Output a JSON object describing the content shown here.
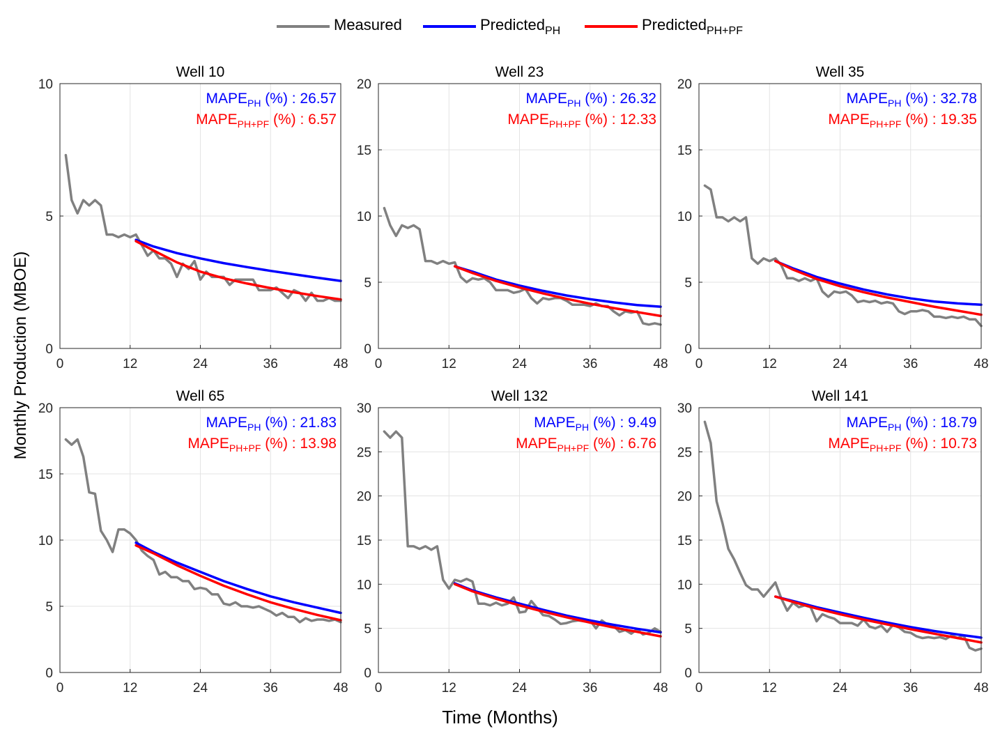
{
  "legend": {
    "measured": "Measured",
    "predicted_ph": "Predicted",
    "predicted_ph_sub": "PH",
    "predicted_phpf": "Predicted",
    "predicted_phpf_sub": "PH+PF"
  },
  "colors": {
    "measured": "#808080",
    "predicted_ph": "#0000ff",
    "predicted_phpf": "#ff0000",
    "grid": "#e3e3e3"
  },
  "ylabel": "Monthly Production (MBOE)",
  "xlabel": "Time (Months)",
  "mape_label": "MAPE",
  "mape_ph_sub": "PH",
  "mape_phpf_sub": "PH+PF",
  "mape_unit": "(%) :",
  "chart_data": [
    {
      "type": "line",
      "title": "Well 10",
      "xlim": [
        0,
        48
      ],
      "ylim": [
        0,
        10
      ],
      "xticks": [
        0,
        12,
        24,
        36,
        48
      ],
      "yticks": [
        0,
        5,
        10
      ],
      "grid": true,
      "mape_ph": "26.57",
      "mape_phpf": "6.57",
      "series": [
        {
          "name": "Measured",
          "x": [
            1,
            2,
            3,
            4,
            5,
            6,
            7,
            8,
            9,
            10,
            11,
            12,
            13,
            14,
            15,
            16,
            17,
            18,
            19,
            20,
            21,
            22,
            23,
            24,
            25,
            26,
            27,
            28,
            29,
            30,
            31,
            32,
            33,
            34,
            35,
            36,
            37,
            38,
            39,
            40,
            41,
            42,
            43,
            44,
            45,
            46,
            47,
            48
          ],
          "values": [
            7.3,
            5.6,
            5.1,
            5.6,
            5.4,
            5.6,
            5.4,
            4.3,
            4.3,
            4.2,
            4.3,
            4.2,
            4.3,
            3.9,
            3.5,
            3.7,
            3.4,
            3.4,
            3.2,
            2.7,
            3.2,
            3.0,
            3.3,
            2.6,
            2.9,
            2.7,
            2.7,
            2.7,
            2.4,
            2.6,
            2.6,
            2.6,
            2.6,
            2.2,
            2.2,
            2.2,
            2.3,
            2.1,
            1.9,
            2.2,
            2.1,
            1.8,
            2.1,
            1.8,
            1.8,
            1.9,
            1.8,
            1.8
          ]
        },
        {
          "name": "Predicted",
          "x": [
            13,
            16,
            20,
            24,
            28,
            32,
            36,
            40,
            44,
            48
          ],
          "values": [
            4.1,
            3.85,
            3.6,
            3.4,
            3.22,
            3.07,
            2.93,
            2.8,
            2.67,
            2.55
          ]
        },
        {
          "name": "Predicted",
          "x": [
            13,
            16,
            20,
            24,
            28,
            32,
            36,
            40,
            44,
            48
          ],
          "values": [
            4.05,
            3.7,
            3.25,
            2.9,
            2.65,
            2.45,
            2.28,
            2.12,
            1.98,
            1.85
          ]
        }
      ]
    },
    {
      "type": "line",
      "title": "Well 23",
      "xlim": [
        0,
        48
      ],
      "ylim": [
        0,
        20
      ],
      "xticks": [
        0,
        12,
        24,
        36,
        48
      ],
      "yticks": [
        0,
        5,
        10,
        15,
        20
      ],
      "grid": true,
      "mape_ph": "26.32",
      "mape_phpf": "12.33",
      "series": [
        {
          "name": "Measured",
          "x": [
            1,
            2,
            3,
            4,
            5,
            6,
            7,
            8,
            9,
            10,
            11,
            12,
            13,
            14,
            15,
            16,
            17,
            18,
            19,
            20,
            21,
            22,
            23,
            24,
            25,
            26,
            27,
            28,
            29,
            30,
            31,
            32,
            33,
            34,
            35,
            36,
            37,
            38,
            39,
            40,
            41,
            42,
            43,
            44,
            45,
            46,
            47,
            48
          ],
          "values": [
            10.6,
            9.3,
            8.5,
            9.3,
            9.1,
            9.3,
            9.0,
            6.6,
            6.6,
            6.4,
            6.6,
            6.4,
            6.5,
            5.4,
            5.0,
            5.3,
            5.2,
            5.3,
            5.0,
            4.4,
            4.4,
            4.4,
            4.2,
            4.3,
            4.5,
            3.8,
            3.4,
            3.8,
            3.7,
            3.8,
            3.8,
            3.6,
            3.3,
            3.3,
            3.3,
            3.2,
            3.4,
            3.2,
            3.2,
            2.8,
            2.5,
            2.8,
            2.7,
            2.8,
            1.9,
            1.8,
            1.9,
            1.8
          ]
        },
        {
          "name": "Predicted",
          "x": [
            13,
            16,
            20,
            24,
            28,
            32,
            36,
            40,
            44,
            48
          ],
          "values": [
            6.2,
            5.8,
            5.2,
            4.75,
            4.35,
            4.0,
            3.72,
            3.48,
            3.28,
            3.15
          ]
        },
        {
          "name": "Predicted",
          "x": [
            13,
            16,
            20,
            24,
            28,
            32,
            36,
            40,
            44,
            48
          ],
          "values": [
            6.2,
            5.7,
            5.1,
            4.6,
            4.15,
            3.75,
            3.38,
            3.05,
            2.75,
            2.45
          ]
        }
      ]
    },
    {
      "type": "line",
      "title": "Well 35",
      "xlim": [
        0,
        48
      ],
      "ylim": [
        0,
        20
      ],
      "xticks": [
        0,
        12,
        24,
        36,
        48
      ],
      "yticks": [
        0,
        5,
        10,
        15,
        20
      ],
      "grid": true,
      "mape_ph": "32.78",
      "mape_phpf": "19.35",
      "series": [
        {
          "name": "Measured",
          "x": [
            1,
            2,
            3,
            4,
            5,
            6,
            7,
            8,
            9,
            10,
            11,
            12,
            13,
            14,
            15,
            16,
            17,
            18,
            19,
            20,
            21,
            22,
            23,
            24,
            25,
            26,
            27,
            28,
            29,
            30,
            31,
            32,
            33,
            34,
            35,
            36,
            37,
            38,
            39,
            40,
            41,
            42,
            43,
            44,
            45,
            46,
            47,
            48
          ],
          "values": [
            12.3,
            12.0,
            9.9,
            9.9,
            9.6,
            9.9,
            9.6,
            9.9,
            6.8,
            6.4,
            6.8,
            6.6,
            6.8,
            6.3,
            5.3,
            5.3,
            5.1,
            5.3,
            5.1,
            5.3,
            4.3,
            3.9,
            4.3,
            4.2,
            4.3,
            4.0,
            3.5,
            3.6,
            3.5,
            3.6,
            3.4,
            3.5,
            3.4,
            2.8,
            2.6,
            2.8,
            2.8,
            2.9,
            2.8,
            2.4,
            2.4,
            2.3,
            2.4,
            2.3,
            2.4,
            2.2,
            2.2,
            1.7
          ]
        },
        {
          "name": "Predicted",
          "x": [
            13,
            16,
            20,
            24,
            28,
            32,
            36,
            40,
            44,
            48
          ],
          "values": [
            6.6,
            6.05,
            5.4,
            4.9,
            4.45,
            4.08,
            3.78,
            3.55,
            3.4,
            3.3
          ]
        },
        {
          "name": "Predicted",
          "x": [
            13,
            16,
            20,
            24,
            28,
            32,
            36,
            40,
            44,
            48
          ],
          "values": [
            6.6,
            5.95,
            5.25,
            4.7,
            4.25,
            3.85,
            3.5,
            3.15,
            2.85,
            2.55
          ]
        }
      ]
    },
    {
      "type": "line",
      "title": "Well 65",
      "xlim": [
        0,
        48
      ],
      "ylim": [
        0,
        20
      ],
      "xticks": [
        0,
        12,
        24,
        36,
        48
      ],
      "yticks": [
        0,
        5,
        10,
        15,
        20
      ],
      "grid": true,
      "mape_ph": "21.83",
      "mape_phpf": "13.98",
      "series": [
        {
          "name": "Measured",
          "x": [
            1,
            2,
            3,
            4,
            5,
            6,
            7,
            8,
            9,
            10,
            11,
            12,
            13,
            14,
            15,
            16,
            17,
            18,
            19,
            20,
            21,
            22,
            23,
            24,
            25,
            26,
            27,
            28,
            29,
            30,
            31,
            32,
            33,
            34,
            35,
            36,
            37,
            38,
            39,
            40,
            41,
            42,
            43,
            44,
            45,
            46,
            47,
            48
          ],
          "values": [
            17.6,
            17.2,
            17.6,
            16.3,
            13.6,
            13.5,
            10.7,
            10.0,
            9.1,
            10.8,
            10.8,
            10.5,
            10.0,
            9.2,
            8.8,
            8.5,
            7.4,
            7.6,
            7.2,
            7.2,
            6.9,
            6.9,
            6.3,
            6.4,
            6.3,
            5.9,
            5.9,
            5.2,
            5.1,
            5.3,
            5.0,
            5.0,
            4.9,
            5.0,
            4.8,
            4.6,
            4.3,
            4.5,
            4.2,
            4.2,
            3.8,
            4.1,
            3.9,
            4.0,
            4.0,
            3.9,
            4.0,
            3.8
          ]
        },
        {
          "name": "Predicted",
          "x": [
            13,
            16,
            20,
            24,
            28,
            32,
            36,
            40,
            44,
            48
          ],
          "values": [
            9.8,
            9.1,
            8.3,
            7.6,
            6.9,
            6.3,
            5.75,
            5.3,
            4.9,
            4.5
          ]
        },
        {
          "name": "Predicted",
          "x": [
            13,
            16,
            20,
            24,
            28,
            32,
            36,
            40,
            44,
            48
          ],
          "values": [
            9.6,
            9.0,
            8.1,
            7.3,
            6.55,
            5.9,
            5.3,
            4.8,
            4.35,
            3.95
          ]
        }
      ]
    },
    {
      "type": "line",
      "title": "Well 132",
      "xlim": [
        0,
        48
      ],
      "ylim": [
        0,
        30
      ],
      "xticks": [
        0,
        12,
        24,
        36,
        48
      ],
      "yticks": [
        0,
        5,
        10,
        15,
        20,
        25,
        30
      ],
      "grid": true,
      "mape_ph": "9.49",
      "mape_phpf": "6.76",
      "series": [
        {
          "name": "Measured",
          "x": [
            1,
            2,
            3,
            4,
            5,
            6,
            7,
            8,
            9,
            10,
            11,
            12,
            13,
            14,
            15,
            16,
            17,
            18,
            19,
            20,
            21,
            22,
            23,
            24,
            25,
            26,
            27,
            28,
            29,
            30,
            31,
            32,
            33,
            34,
            35,
            36,
            37,
            38,
            39,
            40,
            41,
            42,
            43,
            44,
            45,
            46,
            47,
            48
          ],
          "values": [
            27.3,
            26.6,
            27.3,
            26.6,
            14.3,
            14.3,
            14.0,
            14.3,
            13.9,
            14.3,
            10.5,
            9.5,
            10.5,
            10.3,
            10.6,
            10.3,
            7.8,
            7.8,
            7.6,
            7.9,
            7.6,
            7.8,
            8.5,
            6.8,
            6.9,
            8.1,
            7.3,
            6.5,
            6.4,
            6.0,
            5.5,
            5.6,
            5.8,
            5.9,
            5.8,
            5.9,
            5.0,
            5.9,
            5.4,
            5.3,
            4.6,
            4.8,
            4.4,
            4.9,
            4.3,
            4.5,
            5.0,
            4.6
          ]
        },
        {
          "name": "Predicted",
          "x": [
            13,
            16,
            20,
            24,
            28,
            32,
            36,
            40,
            44,
            48
          ],
          "values": [
            10.1,
            9.3,
            8.5,
            7.8,
            7.1,
            6.45,
            5.9,
            5.4,
            4.95,
            4.55
          ]
        },
        {
          "name": "Predicted",
          "x": [
            13,
            16,
            20,
            24,
            28,
            32,
            36,
            40,
            44,
            48
          ],
          "values": [
            10.0,
            9.2,
            8.35,
            7.6,
            6.9,
            6.25,
            5.65,
            5.1,
            4.6,
            4.1
          ]
        }
      ]
    },
    {
      "type": "line",
      "title": "Well 141",
      "xlim": [
        0,
        48
      ],
      "ylim": [
        0,
        30
      ],
      "xticks": [
        0,
        12,
        24,
        36,
        48
      ],
      "yticks": [
        0,
        5,
        10,
        15,
        20,
        25,
        30
      ],
      "grid": true,
      "mape_ph": "18.79",
      "mape_phpf": "10.73",
      "series": [
        {
          "name": "Measured",
          "x": [
            1,
            2,
            3,
            4,
            5,
            6,
            7,
            8,
            9,
            10,
            11,
            12,
            13,
            14,
            15,
            16,
            17,
            18,
            19,
            20,
            21,
            22,
            23,
            24,
            25,
            26,
            27,
            28,
            29,
            30,
            31,
            32,
            33,
            34,
            35,
            36,
            37,
            38,
            39,
            40,
            41,
            42,
            43,
            44,
            45,
            46,
            47,
            48
          ],
          "values": [
            28.4,
            26.0,
            19.4,
            16.9,
            14.0,
            12.8,
            11.3,
            9.9,
            9.4,
            9.4,
            8.6,
            9.4,
            10.2,
            8.4,
            7.0,
            7.9,
            7.4,
            7.6,
            7.4,
            5.8,
            6.6,
            6.3,
            6.1,
            5.6,
            5.6,
            5.6,
            5.3,
            6.0,
            5.2,
            5.0,
            5.3,
            4.6,
            5.4,
            5.1,
            4.6,
            4.5,
            4.1,
            3.9,
            4.0,
            3.9,
            4.0,
            3.8,
            4.2,
            3.9,
            4.2,
            2.8,
            2.5,
            2.7
          ]
        },
        {
          "name": "Predicted",
          "x": [
            13,
            16,
            20,
            24,
            28,
            32,
            36,
            40,
            44,
            48
          ],
          "values": [
            8.6,
            8.1,
            7.4,
            6.8,
            6.2,
            5.65,
            5.15,
            4.7,
            4.3,
            3.95
          ]
        },
        {
          "name": "Predicted",
          "x": [
            13,
            16,
            20,
            24,
            28,
            32,
            36,
            40,
            44,
            48
          ],
          "values": [
            8.6,
            8.0,
            7.25,
            6.6,
            6.0,
            5.45,
            4.9,
            4.4,
            3.9,
            3.4
          ]
        }
      ]
    }
  ]
}
